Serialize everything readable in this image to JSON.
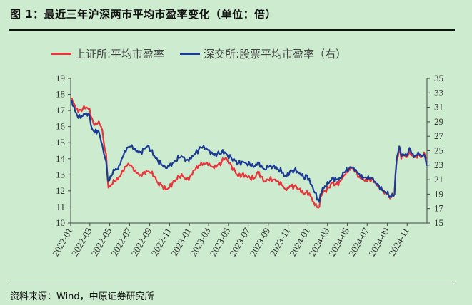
{
  "header": {
    "title": "图 1：最近三年沪深两市平均市盈率变化（单位：倍）"
  },
  "footer": {
    "source": "资料来源：Wind，中原证券研究所"
  },
  "colors": {
    "background": "#cdeccf",
    "series_sh": "#e8343a",
    "series_sz": "#1b3a94"
  },
  "chart_data": {
    "type": "line",
    "title": "",
    "xlabel": "",
    "ylabel": "",
    "legend_position": "top-left",
    "grid": false,
    "x_ticks": [
      "2022-01",
      "2022-03",
      "2022-05",
      "2022-07",
      "2022-09",
      "2022-11",
      "2023-01",
      "2023-03",
      "2023-05",
      "2023-07",
      "2023-09",
      "2023-11",
      "2024-01",
      "2024-03",
      "2024-05",
      "2024-07",
      "2024-09",
      "2024-11"
    ],
    "y_left": {
      "ylim": [
        10,
        19
      ],
      "ticks": [
        "10",
        "11",
        "12",
        "13",
        "14",
        "15",
        "16",
        "17",
        "18",
        "19"
      ]
    },
    "y_right": {
      "ylim": [
        15,
        35
      ],
      "ticks": [
        "15",
        "17",
        "19",
        "21",
        "23",
        "25",
        "27",
        "29",
        "31",
        "33",
        "35"
      ]
    },
    "series": [
      {
        "name": "上证所:平均市盈率",
        "axis": "left",
        "points": [
          [
            "2022-01-04",
            17.8
          ],
          [
            "2022-01-14",
            17.3
          ],
          [
            "2022-01-24",
            16.9
          ],
          [
            "2022-02-07",
            17.1
          ],
          [
            "2022-02-18",
            17.2
          ],
          [
            "2022-02-28",
            17.1
          ],
          [
            "2022-03-08",
            16.5
          ],
          [
            "2022-03-16",
            16.1
          ],
          [
            "2022-03-25",
            16.2
          ],
          [
            "2022-04-01",
            16.1
          ],
          [
            "2022-04-08",
            15.8
          ],
          [
            "2022-04-13",
            15.0
          ],
          [
            "2022-04-20",
            14.3
          ],
          [
            "2022-04-25",
            12.6
          ],
          [
            "2022-04-27",
            12.2
          ],
          [
            "2022-05-06",
            12.4
          ],
          [
            "2022-05-16",
            12.6
          ],
          [
            "2022-05-26",
            12.7
          ],
          [
            "2022-06-06",
            13.1
          ],
          [
            "2022-06-16",
            13.5
          ],
          [
            "2022-06-27",
            13.7
          ],
          [
            "2022-07-05",
            13.6
          ],
          [
            "2022-07-15",
            13.2
          ],
          [
            "2022-07-25",
            13.1
          ],
          [
            "2022-08-04",
            13.0
          ],
          [
            "2022-08-15",
            13.2
          ],
          [
            "2022-08-25",
            13.2
          ],
          [
            "2022-09-05",
            13.1
          ],
          [
            "2022-09-15",
            12.9
          ],
          [
            "2022-09-26",
            12.5
          ],
          [
            "2022-10-10",
            12.3
          ],
          [
            "2022-10-24",
            12.1
          ],
          [
            "2022-10-31",
            12.2
          ],
          [
            "2022-11-10",
            12.5
          ],
          [
            "2022-11-21",
            12.7
          ],
          [
            "2022-11-30",
            12.9
          ],
          [
            "2022-12-12",
            12.9
          ],
          [
            "2022-12-23",
            12.7
          ],
          [
            "2023-01-03",
            12.9
          ],
          [
            "2023-01-16",
            13.3
          ],
          [
            "2023-01-30",
            13.6
          ],
          [
            "2023-02-10",
            13.6
          ],
          [
            "2023-02-21",
            13.7
          ],
          [
            "2023-03-03",
            13.7
          ],
          [
            "2023-03-15",
            13.5
          ],
          [
            "2023-03-28",
            13.6
          ],
          [
            "2023-04-10",
            13.8
          ],
          [
            "2023-04-20",
            14.0
          ],
          [
            "2023-04-28",
            13.9
          ],
          [
            "2023-05-10",
            13.6
          ],
          [
            "2023-05-22",
            13.2
          ],
          [
            "2023-05-31",
            12.9
          ],
          [
            "2023-06-12",
            13.0
          ],
          [
            "2023-06-26",
            12.9
          ],
          [
            "2023-07-07",
            12.8
          ],
          [
            "2023-07-21",
            12.8
          ],
          [
            "2023-07-31",
            13.2
          ],
          [
            "2023-08-10",
            12.9
          ],
          [
            "2023-08-21",
            12.6
          ],
          [
            "2023-09-01",
            12.7
          ],
          [
            "2023-09-15",
            12.7
          ],
          [
            "2023-09-28",
            12.6
          ],
          [
            "2023-10-16",
            12.3
          ],
          [
            "2023-10-24",
            12.1
          ],
          [
            "2023-11-06",
            12.3
          ],
          [
            "2023-11-20",
            12.3
          ],
          [
            "2023-12-04",
            12.1
          ],
          [
            "2023-12-18",
            11.8
          ],
          [
            "2023-12-29",
            12.0
          ],
          [
            "2024-01-12",
            11.6
          ],
          [
            "2024-01-22",
            11.1
          ],
          [
            "2024-02-05",
            11.0
          ],
          [
            "2024-02-08",
            11.6
          ],
          [
            "2024-02-22",
            12.0
          ],
          [
            "2024-03-05",
            12.2
          ],
          [
            "2024-03-15",
            12.5
          ],
          [
            "2024-03-28",
            12.4
          ],
          [
            "2024-04-10",
            12.6
          ],
          [
            "2024-04-22",
            13.0
          ],
          [
            "2024-05-06",
            13.3
          ],
          [
            "2024-05-17",
            13.4
          ],
          [
            "2024-05-27",
            13.2
          ],
          [
            "2024-06-07",
            12.9
          ],
          [
            "2024-06-20",
            12.7
          ],
          [
            "2024-07-01",
            12.6
          ],
          [
            "2024-07-15",
            12.7
          ],
          [
            "2024-07-26",
            12.5
          ],
          [
            "2024-08-06",
            12.3
          ],
          [
            "2024-08-20",
            12.0
          ],
          [
            "2024-08-30",
            11.8
          ],
          [
            "2024-09-13",
            11.6
          ],
          [
            "2024-09-23",
            11.8
          ],
          [
            "2024-09-26",
            13.0
          ],
          [
            "2024-09-30",
            13.9
          ],
          [
            "2024-10-08",
            14.7
          ],
          [
            "2024-10-14",
            14.0
          ],
          [
            "2024-10-21",
            14.2
          ],
          [
            "2024-10-31",
            14.1
          ],
          [
            "2024-11-08",
            14.5
          ],
          [
            "2024-11-15",
            14.2
          ],
          [
            "2024-11-25",
            14.1
          ],
          [
            "2024-12-05",
            14.3
          ],
          [
            "2024-12-16",
            14.1
          ],
          [
            "2024-12-23",
            14.4
          ],
          [
            "2024-12-31",
            13.9
          ]
        ]
      },
      {
        "name": "深交所:股票平均市盈率（右）",
        "axis": "right",
        "points": [
          [
            "2022-01-04",
            32.0
          ],
          [
            "2022-01-14",
            30.5
          ],
          [
            "2022-01-24",
            29.5
          ],
          [
            "2022-02-07",
            29.8
          ],
          [
            "2022-02-18",
            30.2
          ],
          [
            "2022-02-28",
            29.9
          ],
          [
            "2022-03-08",
            28.0
          ],
          [
            "2022-03-16",
            27.5
          ],
          [
            "2022-03-25",
            27.8
          ],
          [
            "2022-04-01",
            27.0
          ],
          [
            "2022-04-08",
            25.8
          ],
          [
            "2022-04-13",
            24.6
          ],
          [
            "2022-04-20",
            23.5
          ],
          [
            "2022-04-25",
            21.0
          ],
          [
            "2022-04-27",
            20.8
          ],
          [
            "2022-05-06",
            21.5
          ],
          [
            "2022-05-16",
            22.3
          ],
          [
            "2022-05-26",
            22.4
          ],
          [
            "2022-06-06",
            23.8
          ],
          [
            "2022-06-16",
            25.0
          ],
          [
            "2022-06-27",
            25.5
          ],
          [
            "2022-07-05",
            25.6
          ],
          [
            "2022-07-15",
            25.1
          ],
          [
            "2022-07-25",
            25.0
          ],
          [
            "2022-08-04",
            24.8
          ],
          [
            "2022-08-15",
            25.3
          ],
          [
            "2022-08-25",
            25.6
          ],
          [
            "2022-09-05",
            25.0
          ],
          [
            "2022-09-15",
            24.3
          ],
          [
            "2022-09-26",
            23.6
          ],
          [
            "2022-10-10",
            23.0
          ],
          [
            "2022-10-24",
            22.6
          ],
          [
            "2022-10-31",
            22.9
          ],
          [
            "2022-11-10",
            23.3
          ],
          [
            "2022-11-21",
            23.6
          ],
          [
            "2022-11-30",
            24.0
          ],
          [
            "2022-12-12",
            24.1
          ],
          [
            "2022-12-23",
            23.7
          ],
          [
            "2023-01-03",
            24.0
          ],
          [
            "2023-01-16",
            24.5
          ],
          [
            "2023-01-30",
            25.2
          ],
          [
            "2023-02-10",
            25.4
          ],
          [
            "2023-02-21",
            25.4
          ],
          [
            "2023-03-03",
            25.1
          ],
          [
            "2023-03-15",
            24.5
          ],
          [
            "2023-03-28",
            24.6
          ],
          [
            "2023-04-10",
            24.7
          ],
          [
            "2023-04-20",
            24.8
          ],
          [
            "2023-04-28",
            24.4
          ],
          [
            "2023-05-10",
            24.0
          ],
          [
            "2023-05-22",
            23.6
          ],
          [
            "2023-05-31",
            23.2
          ],
          [
            "2023-06-12",
            23.5
          ],
          [
            "2023-06-26",
            23.2
          ],
          [
            "2023-07-07",
            23.0
          ],
          [
            "2023-07-21",
            22.8
          ],
          [
            "2023-07-31",
            23.4
          ],
          [
            "2023-08-10",
            23.0
          ],
          [
            "2023-08-21",
            22.4
          ],
          [
            "2023-09-01",
            22.7
          ],
          [
            "2023-09-15",
            22.8
          ],
          [
            "2023-09-28",
            22.5
          ],
          [
            "2023-10-16",
            22.0
          ],
          [
            "2023-10-24",
            21.5
          ],
          [
            "2023-11-06",
            22.1
          ],
          [
            "2023-11-20",
            22.3
          ],
          [
            "2023-12-04",
            21.9
          ],
          [
            "2023-12-18",
            21.3
          ],
          [
            "2023-12-29",
            21.6
          ],
          [
            "2024-01-12",
            20.3
          ],
          [
            "2024-01-22",
            19.2
          ],
          [
            "2024-02-05",
            17.9
          ],
          [
            "2024-02-08",
            19.0
          ],
          [
            "2024-02-22",
            20.1
          ],
          [
            "2024-03-05",
            20.5
          ],
          [
            "2024-03-15",
            21.2
          ],
          [
            "2024-03-28",
            21.0
          ],
          [
            "2024-04-10",
            21.2
          ],
          [
            "2024-04-22",
            22.0
          ],
          [
            "2024-05-06",
            22.5
          ],
          [
            "2024-05-17",
            22.7
          ],
          [
            "2024-05-27",
            22.4
          ],
          [
            "2024-06-07",
            21.8
          ],
          [
            "2024-06-20",
            21.3
          ],
          [
            "2024-07-01",
            21.1
          ],
          [
            "2024-07-15",
            21.2
          ],
          [
            "2024-07-26",
            20.7
          ],
          [
            "2024-08-06",
            20.2
          ],
          [
            "2024-08-20",
            19.5
          ],
          [
            "2024-08-30",
            19.1
          ],
          [
            "2024-09-13",
            18.6
          ],
          [
            "2024-09-23",
            19.0
          ],
          [
            "2024-09-26",
            21.5
          ],
          [
            "2024-09-30",
            24.0
          ],
          [
            "2024-10-08",
            25.6
          ],
          [
            "2024-10-14",
            24.2
          ],
          [
            "2024-10-21",
            24.5
          ],
          [
            "2024-10-31",
            24.3
          ],
          [
            "2024-11-08",
            25.4
          ],
          [
            "2024-11-15",
            24.6
          ],
          [
            "2024-11-25",
            24.3
          ],
          [
            "2024-12-05",
            24.8
          ],
          [
            "2024-12-16",
            24.2
          ],
          [
            "2024-12-23",
            24.5
          ],
          [
            "2024-12-31",
            22.9
          ]
        ]
      }
    ]
  }
}
